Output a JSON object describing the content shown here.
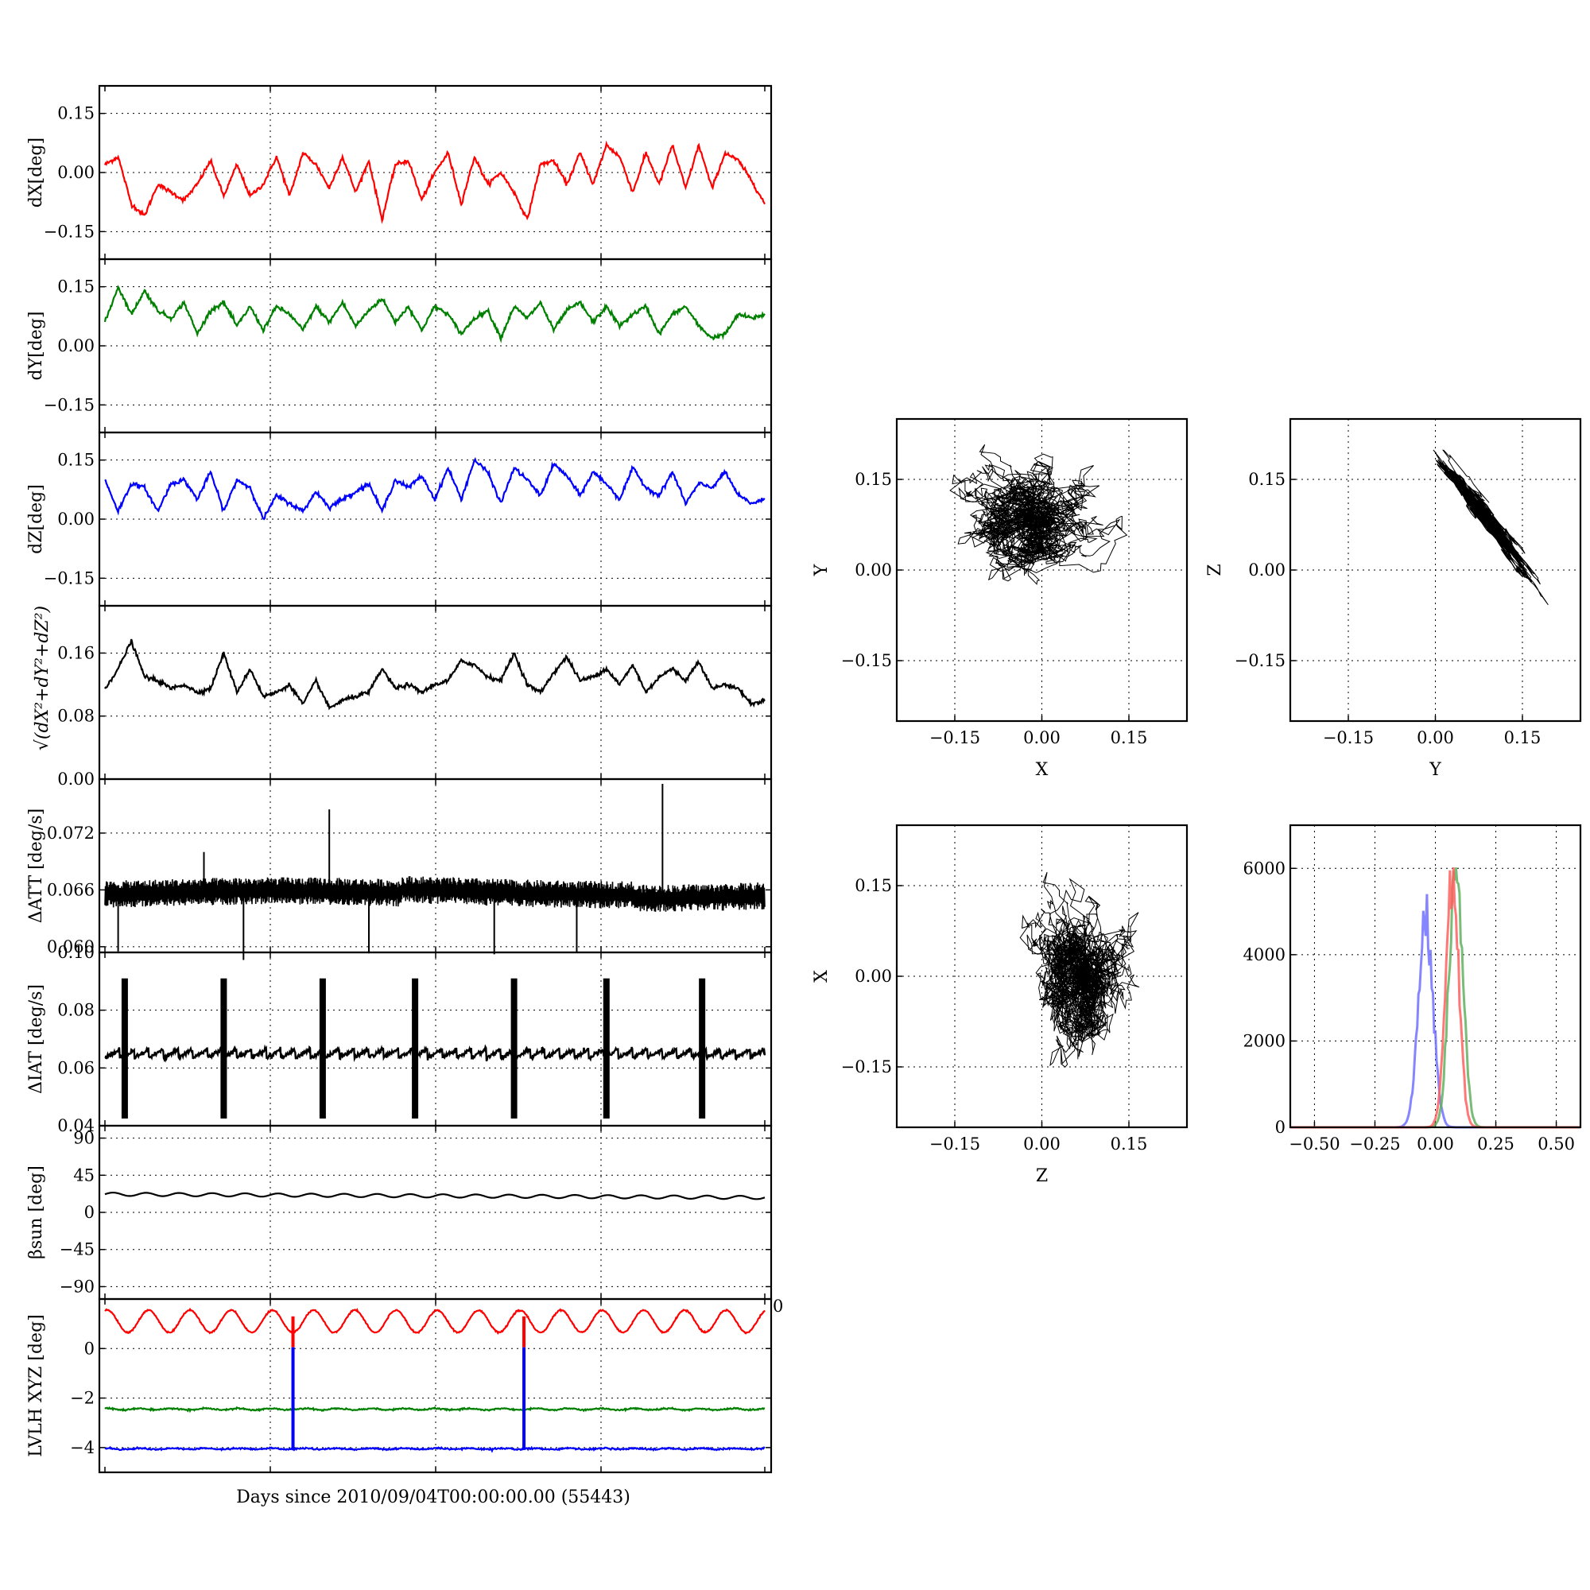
{
  "figure": {
    "xlabel": "Days since 2010/09/04T00:00:00.00 (55443)"
  },
  "chart_data": [
    {
      "id": "dX",
      "type": "line",
      "ylabel": "dX[deg]",
      "ylabel_html": "dX[deg]",
      "ylim": [
        -0.22,
        0.22
      ],
      "yticks": [
        -0.15,
        0.0,
        0.15
      ],
      "ytick_labels": [
        "−0.15",
        "0.00",
        "0.15"
      ],
      "color": "#ff0000",
      "x": [
        0,
        0.02,
        0.04,
        0.06,
        0.08,
        0.1,
        0.12,
        0.14,
        0.16,
        0.18,
        0.2,
        0.22,
        0.24,
        0.26,
        0.28,
        0.3,
        0.32,
        0.34,
        0.36,
        0.38,
        0.4,
        0.42,
        0.44,
        0.46,
        0.48,
        0.5,
        0.52,
        0.54,
        0.56,
        0.58,
        0.6,
        0.62,
        0.64,
        0.66,
        0.68,
        0.7,
        0.72,
        0.74,
        0.76,
        0.78,
        0.8,
        0.82,
        0.84,
        0.86,
        0.88,
        0.9,
        0.92,
        0.94,
        0.96,
        0.98,
        1
      ],
      "values": [
        0.02,
        0.04,
        -0.08,
        -0.11,
        -0.03,
        -0.05,
        -0.07,
        -0.03,
        0.03,
        -0.06,
        0.02,
        -0.06,
        -0.03,
        0.04,
        -0.06,
        0.05,
        0.02,
        -0.04,
        0.04,
        -0.05,
        0.03,
        -0.12,
        0.02,
        0.03,
        -0.07,
        0.0,
        0.05,
        -0.08,
        0.04,
        -0.03,
        0.0,
        -0.05,
        -0.12,
        0.02,
        0.03,
        -0.03,
        0.05,
        -0.03,
        0.07,
        0.04,
        -0.05,
        0.05,
        -0.03,
        0.07,
        -0.04,
        0.07,
        -0.04,
        0.05,
        0.03,
        -0.02,
        -0.08
      ]
    },
    {
      "id": "dY",
      "type": "line",
      "ylabel": "dY[deg]",
      "ylabel_html": "dY[deg]",
      "ylim": [
        -0.22,
        0.22
      ],
      "yticks": [
        -0.15,
        0.0,
        0.15
      ],
      "ytick_labels": [
        "−0.15",
        "0.00",
        "0.15"
      ],
      "color": "#008000",
      "x": [
        0,
        0.02,
        0.04,
        0.06,
        0.08,
        0.1,
        0.12,
        0.14,
        0.16,
        0.18,
        0.2,
        0.22,
        0.24,
        0.26,
        0.28,
        0.3,
        0.32,
        0.34,
        0.36,
        0.38,
        0.4,
        0.42,
        0.44,
        0.46,
        0.48,
        0.5,
        0.52,
        0.54,
        0.56,
        0.58,
        0.6,
        0.62,
        0.64,
        0.66,
        0.68,
        0.7,
        0.72,
        0.74,
        0.76,
        0.78,
        0.8,
        0.82,
        0.84,
        0.86,
        0.88,
        0.9,
        0.92,
        0.94,
        0.96,
        0.98,
        1
      ],
      "values": [
        0.06,
        0.15,
        0.08,
        0.14,
        0.09,
        0.07,
        0.11,
        0.03,
        0.09,
        0.11,
        0.05,
        0.1,
        0.04,
        0.1,
        0.08,
        0.04,
        0.1,
        0.06,
        0.11,
        0.05,
        0.09,
        0.12,
        0.06,
        0.1,
        0.04,
        0.1,
        0.08,
        0.03,
        0.07,
        0.09,
        0.02,
        0.1,
        0.07,
        0.11,
        0.04,
        0.09,
        0.11,
        0.06,
        0.1,
        0.05,
        0.08,
        0.1,
        0.03,
        0.08,
        0.1,
        0.05,
        0.02,
        0.03,
        0.08,
        0.07,
        0.08
      ]
    },
    {
      "id": "dZ",
      "type": "line",
      "ylabel": "dZ[deg]",
      "ylabel_html": "dZ[deg]",
      "ylim": [
        -0.22,
        0.22
      ],
      "yticks": [
        -0.15,
        0.0,
        0.15
      ],
      "ytick_labels": [
        "−0.15",
        "0.00",
        "0.15"
      ],
      "color": "#0000ff",
      "x": [
        0,
        0.02,
        0.04,
        0.06,
        0.08,
        0.1,
        0.12,
        0.14,
        0.16,
        0.18,
        0.2,
        0.22,
        0.24,
        0.26,
        0.28,
        0.3,
        0.32,
        0.34,
        0.36,
        0.38,
        0.4,
        0.42,
        0.44,
        0.46,
        0.48,
        0.5,
        0.52,
        0.54,
        0.56,
        0.58,
        0.6,
        0.62,
        0.64,
        0.66,
        0.68,
        0.7,
        0.72,
        0.74,
        0.76,
        0.78,
        0.8,
        0.82,
        0.84,
        0.86,
        0.88,
        0.9,
        0.92,
        0.94,
        0.96,
        0.98,
        1
      ],
      "values": [
        0.1,
        0.02,
        0.09,
        0.08,
        0.02,
        0.09,
        0.1,
        0.05,
        0.12,
        0.02,
        0.1,
        0.08,
        0.0,
        0.06,
        0.04,
        0.02,
        0.07,
        0.03,
        0.05,
        0.07,
        0.09,
        0.02,
        0.1,
        0.08,
        0.11,
        0.05,
        0.13,
        0.05,
        0.15,
        0.12,
        0.04,
        0.13,
        0.1,
        0.06,
        0.14,
        0.11,
        0.06,
        0.12,
        0.09,
        0.05,
        0.13,
        0.08,
        0.06,
        0.12,
        0.04,
        0.09,
        0.08,
        0.12,
        0.06,
        0.04,
        0.05
      ]
    },
    {
      "id": "R",
      "type": "line",
      "ylabel_html": "√(dX²+dY²+dZ²)",
      "ylim": [
        0.0,
        0.22
      ],
      "yticks": [
        0.0,
        0.08,
        0.16
      ],
      "ytick_labels": [
        "0.00",
        "0.08",
        "0.16"
      ],
      "color": "#000000",
      "x": [
        0,
        0.02,
        0.04,
        0.06,
        0.08,
        0.1,
        0.12,
        0.14,
        0.16,
        0.18,
        0.2,
        0.22,
        0.24,
        0.26,
        0.28,
        0.3,
        0.32,
        0.34,
        0.36,
        0.38,
        0.4,
        0.42,
        0.44,
        0.46,
        0.48,
        0.5,
        0.52,
        0.54,
        0.56,
        0.58,
        0.6,
        0.62,
        0.64,
        0.66,
        0.68,
        0.7,
        0.72,
        0.74,
        0.76,
        0.78,
        0.8,
        0.82,
        0.84,
        0.86,
        0.88,
        0.9,
        0.92,
        0.94,
        0.96,
        0.98,
        1
      ],
      "values": [
        0.115,
        0.14,
        0.175,
        0.13,
        0.125,
        0.115,
        0.12,
        0.11,
        0.115,
        0.16,
        0.11,
        0.14,
        0.105,
        0.11,
        0.12,
        0.095,
        0.125,
        0.09,
        0.1,
        0.105,
        0.11,
        0.14,
        0.115,
        0.12,
        0.11,
        0.12,
        0.125,
        0.15,
        0.145,
        0.13,
        0.125,
        0.16,
        0.12,
        0.11,
        0.135,
        0.155,
        0.125,
        0.13,
        0.14,
        0.12,
        0.145,
        0.11,
        0.13,
        0.14,
        0.125,
        0.15,
        0.115,
        0.12,
        0.115,
        0.095,
        0.1
      ]
    },
    {
      "id": "dATT",
      "type": "line",
      "ylabel": "ΔATT [deg/s]",
      "ylabel_html": "ΔATT [deg/s]",
      "ylim": [
        0.0594,
        0.0777
      ],
      "yticks": [
        0.06,
        0.066,
        0.072
      ],
      "ytick_labels": [
        "0.060",
        "0.066",
        "0.072"
      ],
      "color": "#000000",
      "baseline": 0.0655,
      "band": 0.0012,
      "spikes": [
        [
          0.02,
          0.0595
        ],
        [
          0.15,
          0.07
        ],
        [
          0.21,
          0.0586
        ],
        [
          0.34,
          0.0745
        ],
        [
          0.4,
          0.0593
        ],
        [
          0.59,
          0.0592
        ],
        [
          0.715,
          0.0594
        ],
        [
          0.845,
          0.0772
        ]
      ]
    },
    {
      "id": "dIAT",
      "type": "line",
      "ylabel": "ΔIAT [deg/s]",
      "ylabel_html": "ΔIAT [deg/s]",
      "ylim": [
        0.04,
        0.1
      ],
      "yticks": [
        0.04,
        0.06,
        0.08,
        0.1
      ],
      "ytick_labels": [
        "0.04",
        "0.06",
        "0.08",
        "0.10"
      ],
      "color": "#000000",
      "baseline": 0.065,
      "events": [
        0.03,
        0.18,
        0.33,
        0.47,
        0.62,
        0.76,
        0.905
      ]
    },
    {
      "id": "beta",
      "type": "line",
      "ylabel_html": "βsun [deg]",
      "ylim": [
        -105,
        105
      ],
      "yticks": [
        -90,
        -45,
        0,
        45,
        90
      ],
      "ytick_labels": [
        "−90",
        "−45",
        "0",
        "45",
        "90"
      ],
      "color": "#000000",
      "mean": 22,
      "amp": 2,
      "cycles": 20
    },
    {
      "id": "LVLH",
      "type": "line",
      "ylabel": "LVLH XYZ [deg]",
      "ylabel_html": "LVLH XYZ [deg]",
      "ylim": [
        -5.0,
        2.0
      ],
      "yticks": [
        -4,
        -2,
        0
      ],
      "ytick_labels": [
        "−4",
        "−2",
        "0"
      ],
      "extra_label": "0",
      "series": [
        {
          "color": "#ff0000",
          "mean": 1.1,
          "amp": 0.45,
          "cycles": 16
        },
        {
          "color": "#008000",
          "mean": -2.45,
          "amp": 0.03,
          "cycles": 20
        },
        {
          "color": "#0000ff",
          "mean": -4.05,
          "amp": 0.02,
          "cycles": 20
        }
      ],
      "events": [
        0.285,
        0.635
      ]
    },
    {
      "id": "XY",
      "type": "scatter",
      "xlabel": "X",
      "ylabel": "Y",
      "xlim": [
        -0.25,
        0.25
      ],
      "ylim": [
        -0.25,
        0.25
      ],
      "ticks": [
        -0.15,
        0.0,
        0.15
      ],
      "tick_labels": [
        "−0.15",
        "0.00",
        "0.15"
      ],
      "center": [
        -0.02,
        0.08
      ],
      "spread": [
        0.045,
        0.035
      ],
      "corr": 0.0
    },
    {
      "id": "YZ",
      "type": "scatter",
      "xlabel": "Y",
      "ylabel": "Z",
      "xlim": [
        -0.25,
        0.25
      ],
      "ylim": [
        -0.25,
        0.25
      ],
      "ticks": [
        -0.15,
        0.0,
        0.15
      ],
      "tick_labels": [
        "−0.15",
        "0.00",
        "0.15"
      ],
      "center": [
        0.085,
        0.09
      ],
      "spread": [
        0.03,
        0.04
      ],
      "corr": -0.9
    },
    {
      "id": "ZX",
      "type": "scatter",
      "xlabel": "Z",
      "ylabel": "X",
      "xlim": [
        -0.25,
        0.25
      ],
      "ylim": [
        -0.25,
        0.25
      ],
      "ticks": [
        -0.15,
        0.0,
        0.15
      ],
      "tick_labels": [
        "−0.15",
        "0.00",
        "0.15"
      ],
      "center": [
        0.07,
        -0.01
      ],
      "spread": [
        0.035,
        0.05
      ],
      "corr": 0.0
    },
    {
      "id": "hist",
      "type": "bar",
      "xlim": [
        -0.6,
        0.6
      ],
      "ylim": [
        0,
        7000
      ],
      "xticks": [
        -0.5,
        -0.25,
        0.0,
        0.25,
        0.5
      ],
      "xtick_labels": [
        "−0.50",
        "−0.25",
        "0.00",
        "0.25",
        "0.50"
      ],
      "yticks": [
        0,
        2000,
        4000,
        6000
      ],
      "ytick_labels": [
        "0",
        "2000",
        "4000",
        "6000"
      ],
      "series": [
        {
          "color": "#7070ff",
          "peak": 5000,
          "mu": -0.04,
          "sigma": 0.03
        },
        {
          "color": "#60b060",
          "peak": 6200,
          "mu": 0.085,
          "sigma": 0.028
        },
        {
          "color": "#ff6060",
          "peak": 5900,
          "mu": 0.07,
          "sigma": 0.027
        }
      ]
    }
  ]
}
